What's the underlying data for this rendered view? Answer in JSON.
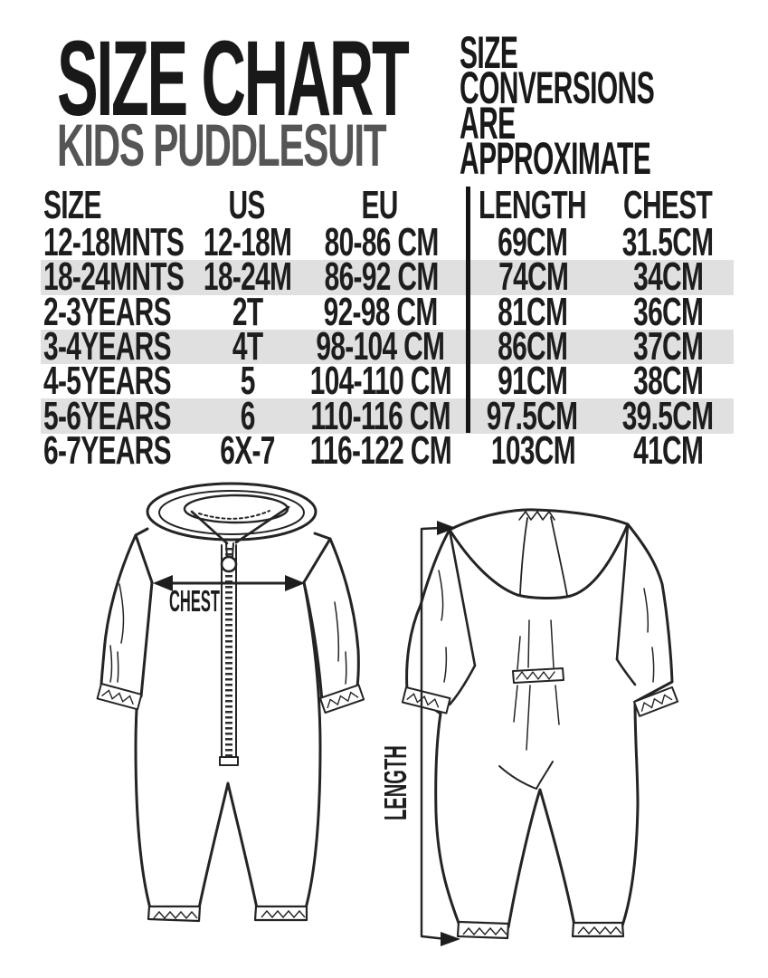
{
  "header": {
    "title": "SIZE CHART",
    "subtitle": "KIDS PUDDLESUIT",
    "note_line1": "SIZE CONVERSIONS",
    "note_line2": "ARE APPROXIMATE"
  },
  "table": {
    "columns": [
      "SIZE",
      "US",
      "EU",
      "LENGTH",
      "CHEST"
    ],
    "rows": [
      {
        "size": "12-18MNTS",
        "us": "12-18M",
        "eu": "80-86 CM",
        "length": "69CM",
        "chest": "31.5CM",
        "shaded": false
      },
      {
        "size": "18-24MNTS",
        "us": "18-24M",
        "eu": "86-92 CM",
        "length": "74CM",
        "chest": "34CM",
        "shaded": true
      },
      {
        "size": "2-3YEARS",
        "us": "2T",
        "eu": "92-98 CM",
        "length": "81CM",
        "chest": "36CM",
        "shaded": false
      },
      {
        "size": "3-4YEARS",
        "us": "4T",
        "eu": "98-104 CM",
        "length": "86CM",
        "chest": "37CM",
        "shaded": true
      },
      {
        "size": "4-5YEARS",
        "us": "5",
        "eu": "104-110 CM",
        "length": "91CM",
        "chest": "38CM",
        "shaded": false
      },
      {
        "size": "5-6YEARS",
        "us": "6",
        "eu": "110-116 CM",
        "length": "97.5CM",
        "chest": "39.5CM",
        "shaded": true
      },
      {
        "size": "6-7YEARS",
        "us": "6X-7",
        "eu": "116-122 CM",
        "length": "103CM",
        "chest": "41CM",
        "shaded": false
      }
    ]
  },
  "diagram": {
    "front_label": "CHEST",
    "back_label": "LENGTH"
  },
  "colors": {
    "text": "#191919",
    "subtitle": "#555555",
    "row_shade": "#e0e0e0",
    "line": "#242424"
  }
}
